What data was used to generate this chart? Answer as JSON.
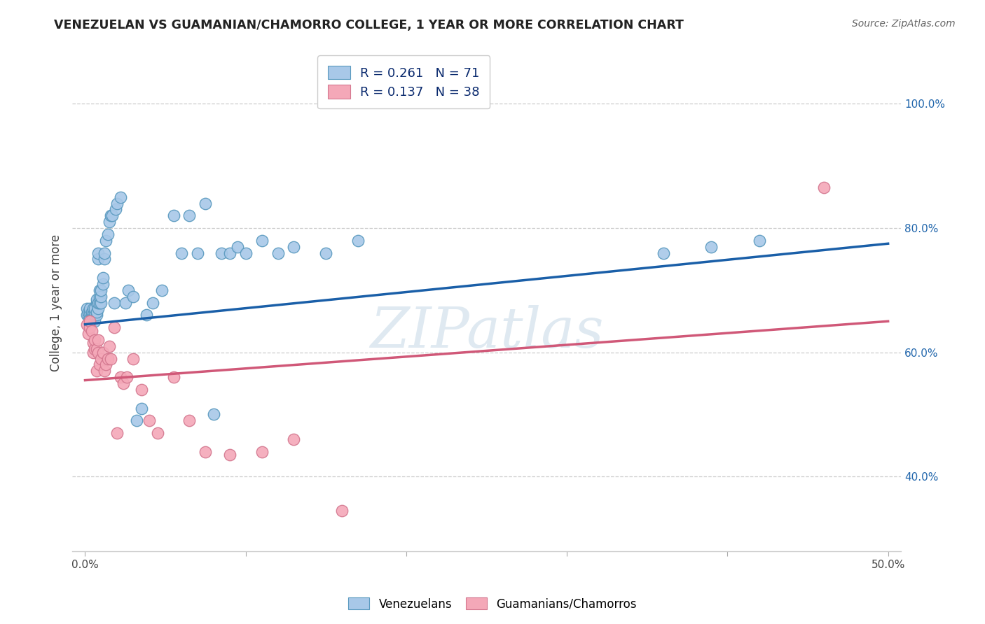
{
  "title": "VENEZUELAN VS GUAMANIAN/CHAMORRO COLLEGE, 1 YEAR OR MORE CORRELATION CHART",
  "source": "Source: ZipAtlas.com",
  "xlabel_ticks": [
    "0.0%",
    "",
    "",
    "",
    "",
    "50.0%"
  ],
  "xlabel_vals": [
    0.0,
    0.1,
    0.2,
    0.3,
    0.4,
    0.5
  ],
  "ylabel_label": "College, 1 year or more",
  "ylabel_ticks_right_labels": [
    "40.0%",
    "60.0%",
    "80.0%",
    "100.0%"
  ],
  "ylabel_vals_right": [
    0.4,
    0.6,
    0.8,
    1.0
  ],
  "xlim": [
    -0.008,
    0.508
  ],
  "ylim": [
    0.28,
    1.08
  ],
  "watermark": "ZIPatlas",
  "legend_blue_R": "R = 0.261",
  "legend_blue_N": "N = 71",
  "legend_pink_R": "R = 0.137",
  "legend_pink_N": "N = 38",
  "blue_scatter_color": "#a8c8e8",
  "blue_scatter_edge": "#5a9abf",
  "pink_scatter_color": "#f4a8b8",
  "pink_scatter_edge": "#d47890",
  "blue_line_color": "#1a5fa8",
  "pink_line_color": "#d05878",
  "venezuelans_x": [
    0.001,
    0.001,
    0.002,
    0.002,
    0.003,
    0.003,
    0.003,
    0.004,
    0.004,
    0.004,
    0.005,
    0.005,
    0.005,
    0.005,
    0.006,
    0.006,
    0.006,
    0.006,
    0.007,
    0.007,
    0.007,
    0.007,
    0.008,
    0.008,
    0.008,
    0.008,
    0.009,
    0.009,
    0.009,
    0.01,
    0.01,
    0.01,
    0.011,
    0.011,
    0.012,
    0.012,
    0.013,
    0.014,
    0.015,
    0.016,
    0.017,
    0.018,
    0.019,
    0.02,
    0.022,
    0.025,
    0.027,
    0.03,
    0.032,
    0.035,
    0.038,
    0.042,
    0.048,
    0.055,
    0.06,
    0.065,
    0.07,
    0.075,
    0.08,
    0.085,
    0.09,
    0.095,
    0.1,
    0.11,
    0.12,
    0.13,
    0.15,
    0.17,
    0.36,
    0.39,
    0.42
  ],
  "venezuelans_y": [
    0.66,
    0.67,
    0.66,
    0.665,
    0.655,
    0.665,
    0.67,
    0.66,
    0.65,
    0.665,
    0.66,
    0.655,
    0.665,
    0.67,
    0.65,
    0.66,
    0.665,
    0.67,
    0.66,
    0.665,
    0.68,
    0.685,
    0.67,
    0.68,
    0.75,
    0.76,
    0.68,
    0.69,
    0.7,
    0.68,
    0.69,
    0.7,
    0.71,
    0.72,
    0.75,
    0.76,
    0.78,
    0.79,
    0.81,
    0.82,
    0.82,
    0.68,
    0.83,
    0.84,
    0.85,
    0.68,
    0.7,
    0.69,
    0.49,
    0.51,
    0.66,
    0.68,
    0.7,
    0.82,
    0.76,
    0.82,
    0.76,
    0.84,
    0.5,
    0.76,
    0.76,
    0.77,
    0.76,
    0.78,
    0.76,
    0.77,
    0.76,
    0.78,
    0.76,
    0.77,
    0.78
  ],
  "chamorros_x": [
    0.001,
    0.002,
    0.003,
    0.003,
    0.004,
    0.005,
    0.005,
    0.006,
    0.006,
    0.007,
    0.007,
    0.008,
    0.008,
    0.009,
    0.01,
    0.011,
    0.012,
    0.013,
    0.014,
    0.015,
    0.016,
    0.018,
    0.02,
    0.022,
    0.024,
    0.026,
    0.03,
    0.035,
    0.04,
    0.045,
    0.055,
    0.065,
    0.075,
    0.09,
    0.11,
    0.13,
    0.16,
    0.46
  ],
  "chamorros_y": [
    0.645,
    0.63,
    0.64,
    0.65,
    0.635,
    0.6,
    0.615,
    0.605,
    0.62,
    0.605,
    0.57,
    0.6,
    0.62,
    0.58,
    0.59,
    0.6,
    0.57,
    0.58,
    0.59,
    0.61,
    0.59,
    0.64,
    0.47,
    0.56,
    0.55,
    0.56,
    0.59,
    0.54,
    0.49,
    0.47,
    0.56,
    0.49,
    0.44,
    0.435,
    0.44,
    0.46,
    0.345,
    0.865
  ],
  "blue_line_x0": 0.0,
  "blue_line_y0": 0.645,
  "blue_line_x1": 0.5,
  "blue_line_y1": 0.775,
  "pink_line_x0": 0.0,
  "pink_line_y0": 0.555,
  "pink_line_x1": 0.5,
  "pink_line_y1": 0.65
}
